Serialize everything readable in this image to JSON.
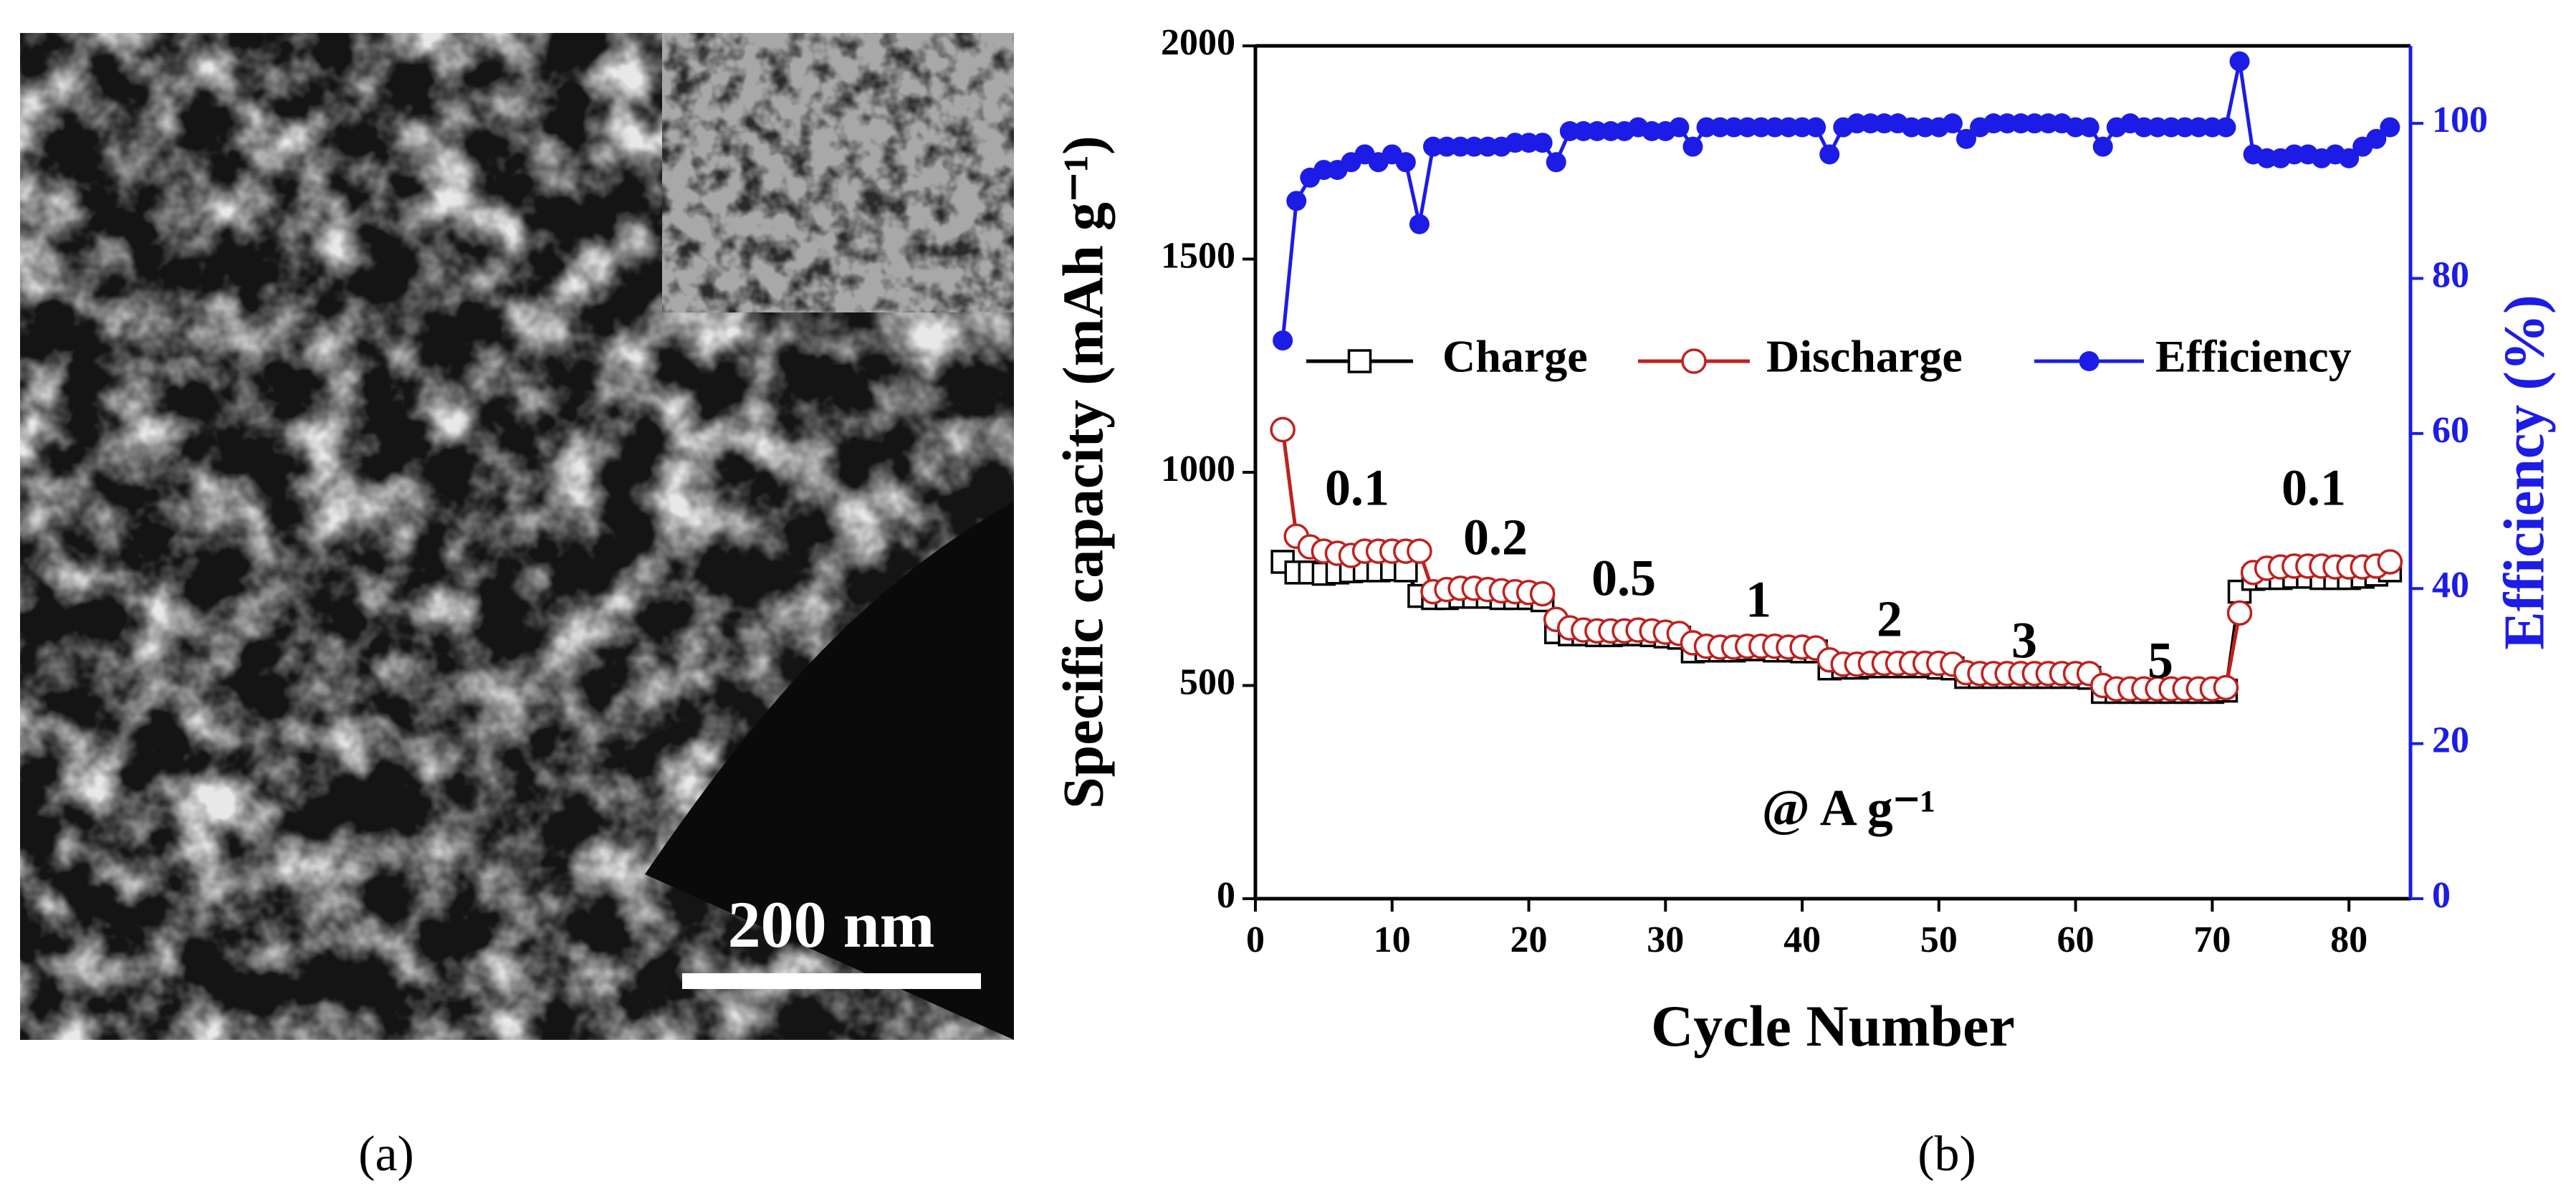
{
  "panel_a": {
    "scale_bar": "200 nm",
    "caption": "(a)"
  },
  "panel_b": {
    "caption": "(b)"
  },
  "chart_data": {
    "type": "line",
    "xlabel": "Cycle Number",
    "ylabel": "Specific capacity (mAh g⁻¹)",
    "y2label": "Efficiency (%)",
    "annotations": [
      "0.1",
      "0.2",
      "0.5",
      "1",
      "2",
      "3",
      "5",
      "0.1",
      "@ A g⁻¹"
    ],
    "xlim": [
      0,
      84.5
    ],
    "xticks": [
      0,
      10,
      20,
      30,
      40,
      50,
      60,
      70,
      80
    ],
    "ylim": [
      0,
      2000
    ],
    "yticks": [
      0,
      500,
      1000,
      1500,
      2000
    ],
    "y2lim": [
      0,
      110
    ],
    "y2ticks": [
      0,
      20,
      40,
      60,
      80,
      100
    ],
    "x": [
      2,
      3,
      4,
      5,
      6,
      7,
      8,
      9,
      10,
      11,
      12,
      13,
      14,
      15,
      16,
      17,
      18,
      19,
      20,
      21,
      22,
      23,
      24,
      25,
      26,
      27,
      28,
      29,
      30,
      31,
      32,
      33,
      34,
      35,
      36,
      37,
      38,
      39,
      40,
      41,
      42,
      43,
      44,
      45,
      46,
      47,
      48,
      49,
      50,
      51,
      52,
      53,
      54,
      55,
      56,
      57,
      58,
      59,
      60,
      61,
      62,
      63,
      64,
      65,
      66,
      67,
      68,
      69,
      70,
      71,
      72,
      73,
      74,
      75,
      76,
      77,
      78,
      79,
      80,
      81,
      82,
      83
    ],
    "series": [
      {
        "name": "Charge",
        "color": "#000000",
        "marker": "square",
        "values": [
          790,
          765,
          765,
          762,
          765,
          768,
          770,
          770,
          772,
          770,
          710,
          705,
          705,
          708,
          708,
          708,
          705,
          705,
          705,
          700,
          625,
          620,
          620,
          618,
          618,
          620,
          620,
          618,
          615,
          612,
          580,
          582,
          582,
          582,
          585,
          585,
          582,
          582,
          580,
          580,
          540,
          542,
          542,
          545,
          545,
          545,
          545,
          545,
          542,
          540,
          520,
          520,
          520,
          520,
          520,
          520,
          520,
          520,
          520,
          518,
          485,
          485,
          485,
          485,
          485,
          485,
          485,
          485,
          485,
          488,
          720,
          750,
          752,
          752,
          755,
          755,
          752,
          752,
          752,
          755,
          760,
          770
        ]
      },
      {
        "name": "Discharge",
        "color": "#c0201e",
        "marker": "circle",
        "values": [
          1100,
          850,
          825,
          815,
          810,
          805,
          815,
          815,
          815,
          815,
          815,
          720,
          725,
          728,
          728,
          725,
          722,
          720,
          718,
          715,
          655,
          635,
          630,
          628,
          628,
          628,
          630,
          628,
          625,
          622,
          600,
          592,
          590,
          590,
          592,
          592,
          592,
          590,
          590,
          588,
          560,
          550,
          550,
          552,
          552,
          552,
          552,
          552,
          552,
          550,
          530,
          528,
          528,
          528,
          528,
          528,
          528,
          528,
          528,
          528,
          500,
          492,
          492,
          492,
          492,
          492,
          492,
          492,
          492,
          495,
          670,
          765,
          775,
          778,
          780,
          780,
          780,
          778,
          778,
          778,
          780,
          790
        ]
      },
      {
        "name": "Efficiency",
        "color": "#1c1ce6",
        "marker": "dot",
        "axis": "y2",
        "values": [
          72,
          90,
          93,
          94,
          94,
          95,
          96,
          95,
          96,
          95,
          87,
          97,
          97,
          97,
          97,
          97,
          97,
          97.5,
          97.5,
          97.5,
          95,
          99,
          99,
          99,
          99,
          99,
          99.5,
          99,
          99,
          99.5,
          97,
          99.5,
          99.5,
          99.5,
          99.5,
          99.5,
          99.5,
          99.5,
          99.5,
          99.5,
          96,
          99.5,
          100,
          100,
          100,
          100,
          99.5,
          99.5,
          99.5,
          100,
          98,
          99.5,
          100,
          100,
          100,
          100,
          100,
          100,
          99.5,
          99.5,
          97,
          99.5,
          100,
          99.5,
          99.5,
          99.5,
          99.5,
          99.5,
          99.5,
          99.5,
          108,
          96,
          95.5,
          95.5,
          96,
          96,
          95.5,
          96,
          95.5,
          97,
          98,
          99.5
        ]
      }
    ]
  }
}
